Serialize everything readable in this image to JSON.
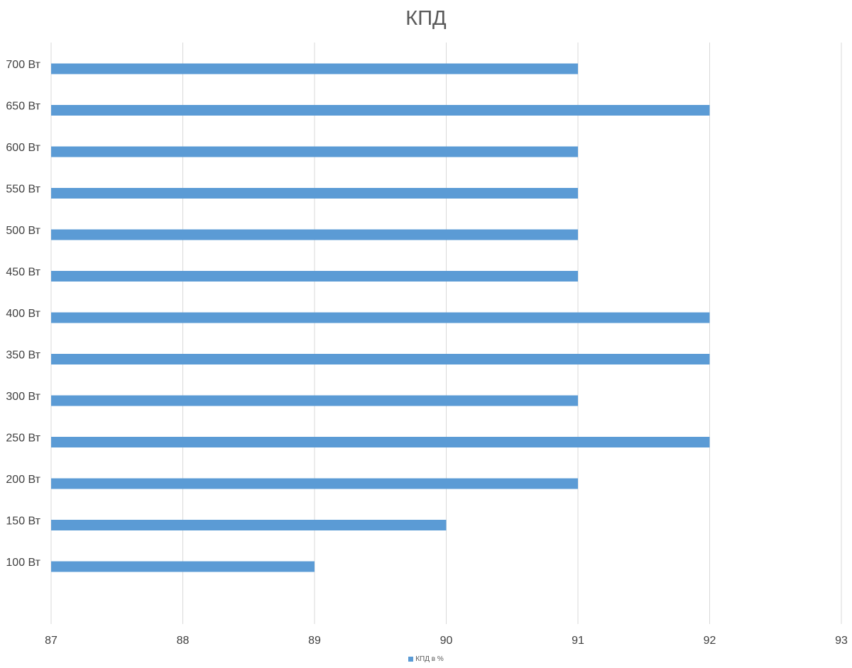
{
  "chart_data": {
    "type": "bar",
    "orientation": "horizontal",
    "title": "КПД",
    "categories": [
      "100 Вт",
      "150 Вт",
      "200 Вт",
      "250 Вт",
      "300 Вт",
      "350 Вт",
      "400 Вт",
      "450 Вт",
      "500 Вт",
      "550 Вт",
      "600 Вт",
      "650 Вт",
      "700 Вт"
    ],
    "series": [
      {
        "name": "КПД в %",
        "values": [
          89,
          90,
          91,
          92,
          91,
          92,
          92,
          91,
          91,
          91,
          91,
          92,
          91
        ],
        "color": "#5b9bd5"
      }
    ],
    "xlim": [
      87,
      93
    ],
    "xticks": [
      "87",
      "88",
      "89",
      "90",
      "91",
      "92",
      "93"
    ],
    "grid": true,
    "legend_position": "bottom"
  }
}
